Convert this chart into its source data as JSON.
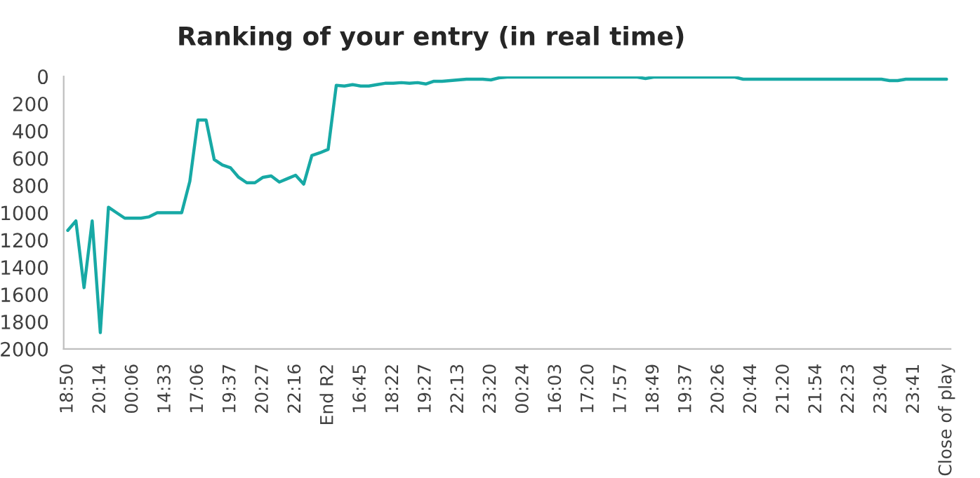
{
  "chart_data": {
    "type": "line",
    "title": "Ranking of your entry (in real time)",
    "categories": [
      "18:50",
      null,
      null,
      null,
      "20:14",
      null,
      null,
      null,
      "00:06",
      null,
      null,
      null,
      "14:33",
      null,
      null,
      null,
      "17:06",
      null,
      null,
      null,
      "19:37",
      null,
      null,
      null,
      "20:27",
      null,
      null,
      null,
      "22:16",
      null,
      null,
      null,
      "End R2",
      null,
      null,
      null,
      "16:45",
      null,
      null,
      null,
      "18:22",
      null,
      null,
      null,
      "19:27",
      null,
      null,
      null,
      "22:13",
      null,
      null,
      null,
      "23:20",
      null,
      null,
      null,
      "00:24",
      null,
      null,
      null,
      "16:03",
      null,
      null,
      null,
      "17:20",
      null,
      null,
      null,
      "17:57",
      null,
      null,
      null,
      "18:49",
      null,
      null,
      null,
      "19:37",
      null,
      null,
      null,
      "20:26",
      null,
      null,
      null,
      "20:44",
      null,
      null,
      null,
      "21:20",
      null,
      null,
      null,
      "21:54",
      null,
      null,
      null,
      "22:23",
      null,
      null,
      null,
      "23:04",
      null,
      null,
      null,
      "23:41",
      null,
      null,
      null,
      "Close of play"
    ],
    "series": [
      {
        "color": "#17a9a5",
        "values": [
          1130,
          1060,
          1550,
          1060,
          1880,
          960,
          1000,
          1040,
          1040,
          1040,
          1030,
          1000,
          1000,
          1000,
          1000,
          770,
          320,
          320,
          610,
          650,
          670,
          740,
          780,
          780,
          740,
          730,
          775,
          750,
          725,
          790,
          580,
          560,
          535,
          65,
          70,
          60,
          70,
          70,
          60,
          50,
          50,
          45,
          50,
          45,
          55,
          35,
          35,
          30,
          25,
          20,
          20,
          20,
          25,
          10,
          5,
          5,
          5,
          5,
          5,
          5,
          5,
          5,
          5,
          5,
          5,
          5,
          5,
          5,
          5,
          5,
          5,
          15,
          5,
          5,
          5,
          5,
          5,
          5,
          5,
          5,
          5,
          5,
          5,
          20,
          20,
          20,
          20,
          20,
          20,
          20,
          20,
          20,
          20,
          20,
          20,
          20,
          20,
          20,
          20,
          20,
          20,
          30,
          30,
          20,
          20,
          20,
          20,
          20,
          20
        ]
      }
    ],
    "ylim": [
      2000,
      0
    ],
    "yticks": [
      0,
      200,
      400,
      600,
      800,
      1000,
      1200,
      1400,
      1600,
      1800,
      2000
    ],
    "grid": false,
    "legend": false,
    "marker": "none",
    "line_style": "solid"
  }
}
